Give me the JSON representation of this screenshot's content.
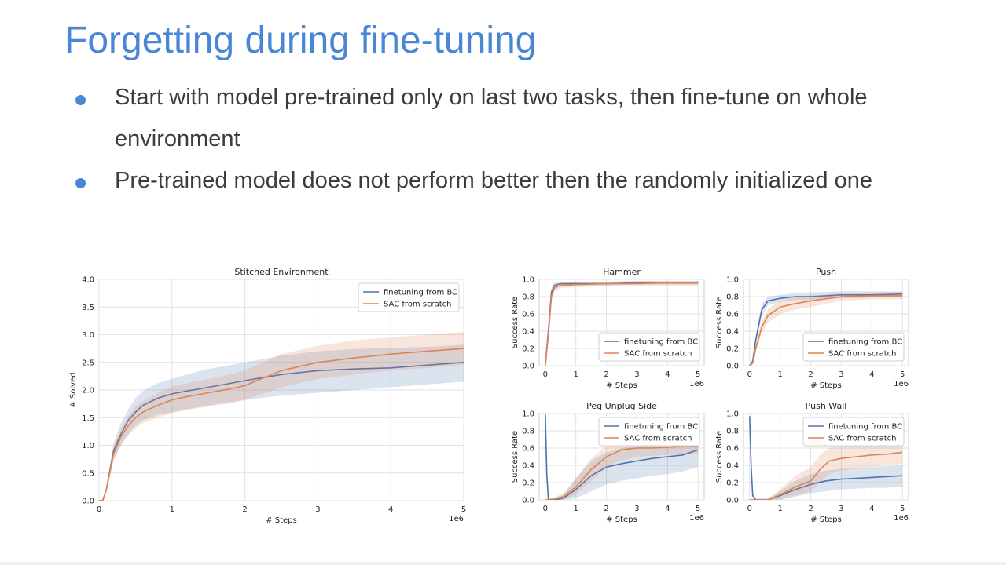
{
  "slide": {
    "title": "Forgetting during fine-tuning",
    "bullets": [
      "Start with model pre-trained only on last two tasks, then fine-tune on whole environment",
      "Pre-trained model does not perform better then the randomly initialized one"
    ]
  },
  "colors": {
    "accent": "#4a86d6",
    "series_bc": "#4c72b0",
    "series_sac": "#dd8452"
  },
  "chart_data": [
    {
      "id": "stitched",
      "type": "line",
      "title": "Stitched Environment",
      "xlabel": "# Steps",
      "ylabel": "# Solved",
      "x_offset_label": "1e6",
      "xlim": [
        0,
        5
      ],
      "ylim": [
        0,
        4
      ],
      "xticks": [
        0,
        1,
        2,
        3,
        4,
        5
      ],
      "yticks": [
        0.0,
        0.5,
        1.0,
        1.5,
        2.0,
        2.5,
        3.0,
        3.5,
        4.0
      ],
      "legend_loc": "top-right",
      "series": [
        {
          "name": "finetuning from BC",
          "color": "#4c72b0",
          "x": [
            0,
            0.05,
            0.1,
            0.2,
            0.3,
            0.4,
            0.5,
            0.6,
            0.8,
            1.0,
            1.2,
            1.5,
            1.8,
            2.0,
            2.5,
            3.0,
            3.5,
            4.0,
            4.5,
            5.0
          ],
          "y": [
            0,
            0.0,
            0.2,
            0.9,
            1.2,
            1.45,
            1.6,
            1.72,
            1.85,
            1.93,
            1.98,
            2.05,
            2.12,
            2.17,
            2.28,
            2.35,
            2.38,
            2.4,
            2.45,
            2.5
          ],
          "lower": [
            0,
            0.0,
            0.15,
            0.75,
            1.0,
            1.2,
            1.35,
            1.45,
            1.55,
            1.6,
            1.65,
            1.72,
            1.78,
            1.82,
            1.9,
            1.95,
            2.0,
            2.05,
            2.1,
            2.15
          ],
          "upper": [
            0,
            0.02,
            0.25,
            1.05,
            1.4,
            1.65,
            1.85,
            1.98,
            2.12,
            2.2,
            2.28,
            2.38,
            2.45,
            2.5,
            2.62,
            2.7,
            2.74,
            2.76,
            2.78,
            2.82
          ]
        },
        {
          "name": "SAC from scratch",
          "color": "#dd8452",
          "x": [
            0,
            0.05,
            0.1,
            0.2,
            0.3,
            0.4,
            0.5,
            0.6,
            0.8,
            1.0,
            1.2,
            1.5,
            1.8,
            2.0,
            2.5,
            3.0,
            3.5,
            4.0,
            4.5,
            5.0
          ],
          "y": [
            0,
            0.0,
            0.2,
            0.85,
            1.15,
            1.35,
            1.5,
            1.6,
            1.72,
            1.82,
            1.88,
            1.95,
            2.02,
            2.08,
            2.35,
            2.5,
            2.58,
            2.65,
            2.7,
            2.75
          ],
          "lower": [
            0,
            0.0,
            0.15,
            0.72,
            1.0,
            1.18,
            1.3,
            1.4,
            1.5,
            1.58,
            1.64,
            1.7,
            1.76,
            1.82,
            2.05,
            2.2,
            2.28,
            2.35,
            2.4,
            2.45
          ],
          "upper": [
            0,
            0.02,
            0.25,
            0.98,
            1.3,
            1.52,
            1.7,
            1.8,
            1.94,
            2.06,
            2.12,
            2.2,
            2.28,
            2.36,
            2.65,
            2.8,
            2.9,
            2.95,
            3.0,
            3.05
          ]
        }
      ]
    },
    {
      "id": "hammer",
      "type": "line",
      "title": "Hammer",
      "xlabel": "# Steps",
      "ylabel": "Success Rate",
      "x_offset_label": "1e6",
      "xlim": [
        -0.2,
        5.2
      ],
      "ylim": [
        0,
        1
      ],
      "xticks": [
        0,
        1,
        2,
        3,
        4,
        5
      ],
      "yticks": [
        0.0,
        0.2,
        0.4,
        0.6,
        0.8,
        1.0
      ],
      "legend_loc": "lower-right",
      "series": [
        {
          "name": "finetuning from BC",
          "color": "#4c72b0",
          "x": [
            0,
            0.1,
            0.2,
            0.3,
            0.5,
            1.0,
            2.0,
            3.0,
            4.0,
            5.0
          ],
          "y": [
            0,
            0.4,
            0.85,
            0.93,
            0.95,
            0.95,
            0.95,
            0.96,
            0.96,
            0.96
          ],
          "lower": [
            0,
            0.35,
            0.8,
            0.9,
            0.93,
            0.93,
            0.93,
            0.94,
            0.94,
            0.94
          ],
          "upper": [
            0,
            0.45,
            0.9,
            0.96,
            0.97,
            0.97,
            0.97,
            0.98,
            0.98,
            0.98
          ]
        },
        {
          "name": "SAC from scratch",
          "color": "#dd8452",
          "x": [
            0,
            0.1,
            0.2,
            0.3,
            0.5,
            1.0,
            2.0,
            3.0,
            4.0,
            5.0
          ],
          "y": [
            0,
            0.35,
            0.8,
            0.9,
            0.93,
            0.94,
            0.95,
            0.95,
            0.96,
            0.96
          ],
          "lower": [
            0,
            0.3,
            0.74,
            0.86,
            0.9,
            0.91,
            0.92,
            0.92,
            0.93,
            0.93
          ],
          "upper": [
            0,
            0.4,
            0.86,
            0.94,
            0.96,
            0.97,
            0.97,
            0.98,
            0.98,
            0.98
          ]
        }
      ]
    },
    {
      "id": "push",
      "type": "line",
      "title": "Push",
      "xlabel": "# Steps",
      "ylabel": "Success Rate",
      "x_offset_label": "1e6",
      "xlim": [
        -0.2,
        5.2
      ],
      "ylim": [
        0,
        1
      ],
      "xticks": [
        0,
        1,
        2,
        3,
        4,
        5
      ],
      "yticks": [
        0.0,
        0.2,
        0.4,
        0.6,
        0.8,
        1.0
      ],
      "legend_loc": "lower-right",
      "series": [
        {
          "name": "finetuning from BC",
          "color": "#4c72b0",
          "x": [
            0,
            0.1,
            0.2,
            0.4,
            0.6,
            1.0,
            1.5,
            2.0,
            3.0,
            4.0,
            5.0
          ],
          "y": [
            0,
            0.05,
            0.3,
            0.65,
            0.75,
            0.78,
            0.8,
            0.8,
            0.82,
            0.82,
            0.83
          ],
          "lower": [
            0,
            0.03,
            0.25,
            0.58,
            0.7,
            0.74,
            0.76,
            0.76,
            0.78,
            0.79,
            0.8
          ],
          "upper": [
            0,
            0.08,
            0.35,
            0.72,
            0.8,
            0.82,
            0.84,
            0.85,
            0.86,
            0.86,
            0.86
          ]
        },
        {
          "name": "SAC from scratch",
          "color": "#dd8452",
          "x": [
            0,
            0.1,
            0.2,
            0.4,
            0.6,
            1.0,
            1.5,
            2.0,
            3.0,
            4.0,
            5.0
          ],
          "y": [
            0,
            0.03,
            0.2,
            0.45,
            0.58,
            0.68,
            0.72,
            0.75,
            0.8,
            0.81,
            0.81
          ],
          "lower": [
            0,
            0.02,
            0.15,
            0.38,
            0.5,
            0.6,
            0.65,
            0.68,
            0.75,
            0.77,
            0.77
          ],
          "upper": [
            0,
            0.05,
            0.26,
            0.52,
            0.66,
            0.75,
            0.79,
            0.81,
            0.84,
            0.85,
            0.85
          ]
        }
      ]
    },
    {
      "id": "peg",
      "type": "line",
      "title": "Peg Unplug Side",
      "xlabel": "# Steps",
      "ylabel": "Success Rate",
      "x_offset_label": "1e6",
      "xlim": [
        -0.2,
        5.2
      ],
      "ylim": [
        0,
        1
      ],
      "xticks": [
        0,
        1,
        2,
        3,
        4,
        5
      ],
      "yticks": [
        0.0,
        0.2,
        0.4,
        0.6,
        0.8,
        1.0
      ],
      "legend_loc": "upper-right",
      "series": [
        {
          "name": "finetuning from BC",
          "color": "#4c72b0",
          "x": [
            0,
            0.05,
            0.1,
            0.3,
            0.6,
            1.0,
            1.5,
            2.0,
            2.5,
            3.0,
            3.5,
            4.0,
            4.5,
            5.0
          ],
          "y": [
            1.0,
            0.3,
            0.0,
            0.0,
            0.02,
            0.12,
            0.28,
            0.38,
            0.42,
            0.45,
            0.48,
            0.5,
            0.52,
            0.58
          ],
          "lower": [
            1.0,
            0.25,
            0.0,
            0.0,
            0.0,
            0.02,
            0.1,
            0.18,
            0.22,
            0.25,
            0.28,
            0.3,
            0.33,
            0.38
          ],
          "upper": [
            1.0,
            0.35,
            0.02,
            0.02,
            0.06,
            0.25,
            0.45,
            0.55,
            0.6,
            0.63,
            0.65,
            0.66,
            0.68,
            0.72
          ]
        },
        {
          "name": "SAC from scratch",
          "color": "#dd8452",
          "x": [
            0,
            0.1,
            0.3,
            0.6,
            1.0,
            1.5,
            2.0,
            2.5,
            3.0,
            3.5,
            4.0,
            4.5,
            5.0
          ],
          "y": [
            0,
            0.0,
            0.01,
            0.04,
            0.15,
            0.35,
            0.5,
            0.58,
            0.6,
            0.6,
            0.61,
            0.62,
            0.62
          ],
          "lower": [
            0,
            0.0,
            0.0,
            0.01,
            0.06,
            0.22,
            0.38,
            0.46,
            0.5,
            0.51,
            0.52,
            0.53,
            0.54
          ],
          "upper": [
            0,
            0.01,
            0.03,
            0.08,
            0.25,
            0.48,
            0.62,
            0.68,
            0.7,
            0.7,
            0.7,
            0.7,
            0.7
          ]
        }
      ]
    },
    {
      "id": "pushwall",
      "type": "line",
      "title": "Push Wall",
      "xlabel": "# Steps",
      "ylabel": "Success Rate",
      "x_offset_label": "1e6",
      "xlim": [
        -0.2,
        5.2
      ],
      "ylim": [
        0,
        1
      ],
      "xticks": [
        0,
        1,
        2,
        3,
        4,
        5
      ],
      "yticks": [
        0.0,
        0.2,
        0.4,
        0.6,
        0.8,
        1.0
      ],
      "legend_loc": "upper-right",
      "series": [
        {
          "name": "finetuning from BC",
          "color": "#4c72b0",
          "x": [
            0,
            0.05,
            0.1,
            0.2,
            0.6,
            1.0,
            1.5,
            2.0,
            2.5,
            3.0,
            3.5,
            4.0,
            4.5,
            5.0
          ],
          "y": [
            0.97,
            0.4,
            0.05,
            0.0,
            0.0,
            0.05,
            0.12,
            0.18,
            0.22,
            0.24,
            0.25,
            0.26,
            0.27,
            0.28
          ],
          "lower": [
            0.97,
            0.35,
            0.03,
            0.0,
            0.0,
            0.0,
            0.04,
            0.08,
            0.1,
            0.12,
            0.13,
            0.14,
            0.14,
            0.15
          ],
          "upper": [
            0.97,
            0.45,
            0.08,
            0.02,
            0.02,
            0.1,
            0.22,
            0.3,
            0.34,
            0.36,
            0.37,
            0.38,
            0.39,
            0.4
          ]
        },
        {
          "name": "SAC from scratch",
          "color": "#dd8452",
          "x": [
            0,
            0.1,
            0.6,
            1.0,
            1.5,
            2.0,
            2.3,
            2.6,
            3.0,
            3.5,
            4.0,
            4.5,
            5.0
          ],
          "y": [
            0,
            0.0,
            0.0,
            0.06,
            0.15,
            0.22,
            0.35,
            0.45,
            0.48,
            0.5,
            0.52,
            0.53,
            0.55
          ],
          "lower": [
            0,
            0.0,
            0.0,
            0.01,
            0.05,
            0.1,
            0.2,
            0.3,
            0.34,
            0.36,
            0.38,
            0.4,
            0.42
          ],
          "upper": [
            0,
            0.01,
            0.01,
            0.12,
            0.28,
            0.38,
            0.52,
            0.6,
            0.63,
            0.64,
            0.65,
            0.66,
            0.68
          ]
        }
      ]
    }
  ]
}
